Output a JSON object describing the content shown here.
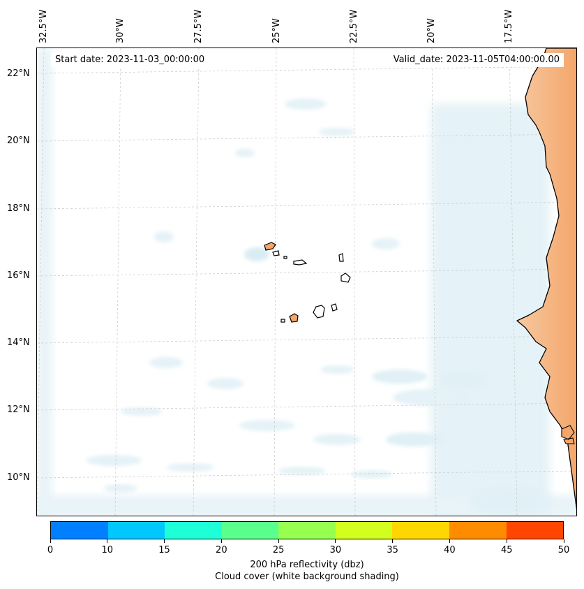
{
  "map": {
    "start_date": "Start date: 2023-11-03_00:00:00",
    "valid_date": "Valid_date: 2023-11-05T04:00:00.00",
    "lon_labels": [
      "32.5°W",
      "30°W",
      "27.5°W",
      "25°W",
      "22.5°W",
      "20°W",
      "17.5°W"
    ],
    "lat_labels": [
      "22°N",
      "20°N",
      "18°N",
      "16°N",
      "14°N",
      "12°N",
      "10°N"
    ],
    "land_color": "#f4a66a",
    "cloud_color": "#add8e6"
  },
  "colorbar": {
    "ticks": [
      "0",
      "10",
      "15",
      "20",
      "25",
      "30",
      "35",
      "40",
      "45",
      "50"
    ],
    "colors": [
      "#0080ff",
      "#00c8ff",
      "#1effd8",
      "#5aff8c",
      "#96ff50",
      "#d2ff1e",
      "#ffd700",
      "#ff8c00",
      "#ff4600"
    ],
    "label_line1": "200 hPa reflectivity (dbz)",
    "label_line2": "Cloud cover (white background shading)"
  }
}
